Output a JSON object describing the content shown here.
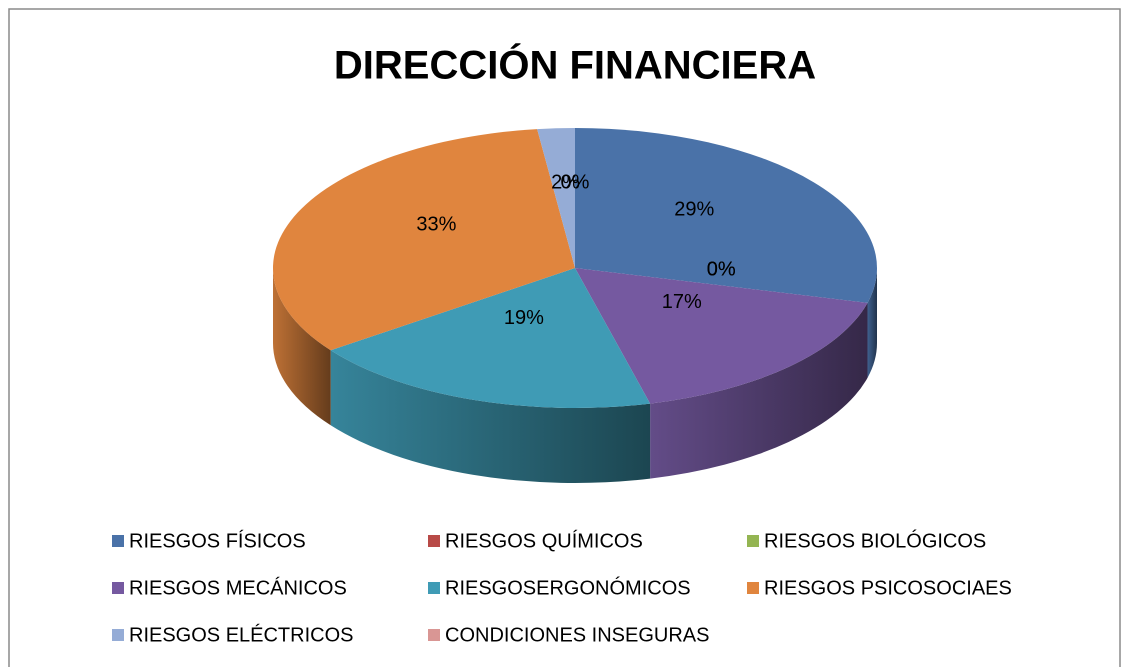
{
  "chart_data": {
    "type": "pie3d",
    "title": "DIRECCIÓN  FINANCIERA",
    "categories": [
      "RIESGOS FÍSICOS",
      "RIESGOS QUÍMICOS",
      "RIESGOS BIOLÓGICOS",
      "RIESGOS MECÁNICOS",
      "RIESGOSERGONÓMICOS",
      "RIESGOS PSICOSOCIAES",
      "RIESGOS ELÉCTRICOS",
      "CONDICIONES INSEGURAS"
    ],
    "values": [
      29,
      0,
      0,
      17,
      19,
      33,
      2,
      0
    ],
    "value_labels": [
      "29%",
      "0%",
      "0%",
      "17%",
      "19%",
      "33%",
      "2%",
      "0%"
    ],
    "colors": [
      "#4a72a8",
      "#b84a47",
      "#94b552",
      "#7559a0",
      "#3f9bb5",
      "#e0853e",
      "#95acd6",
      "#d99694"
    ],
    "legend": "bottom"
  }
}
